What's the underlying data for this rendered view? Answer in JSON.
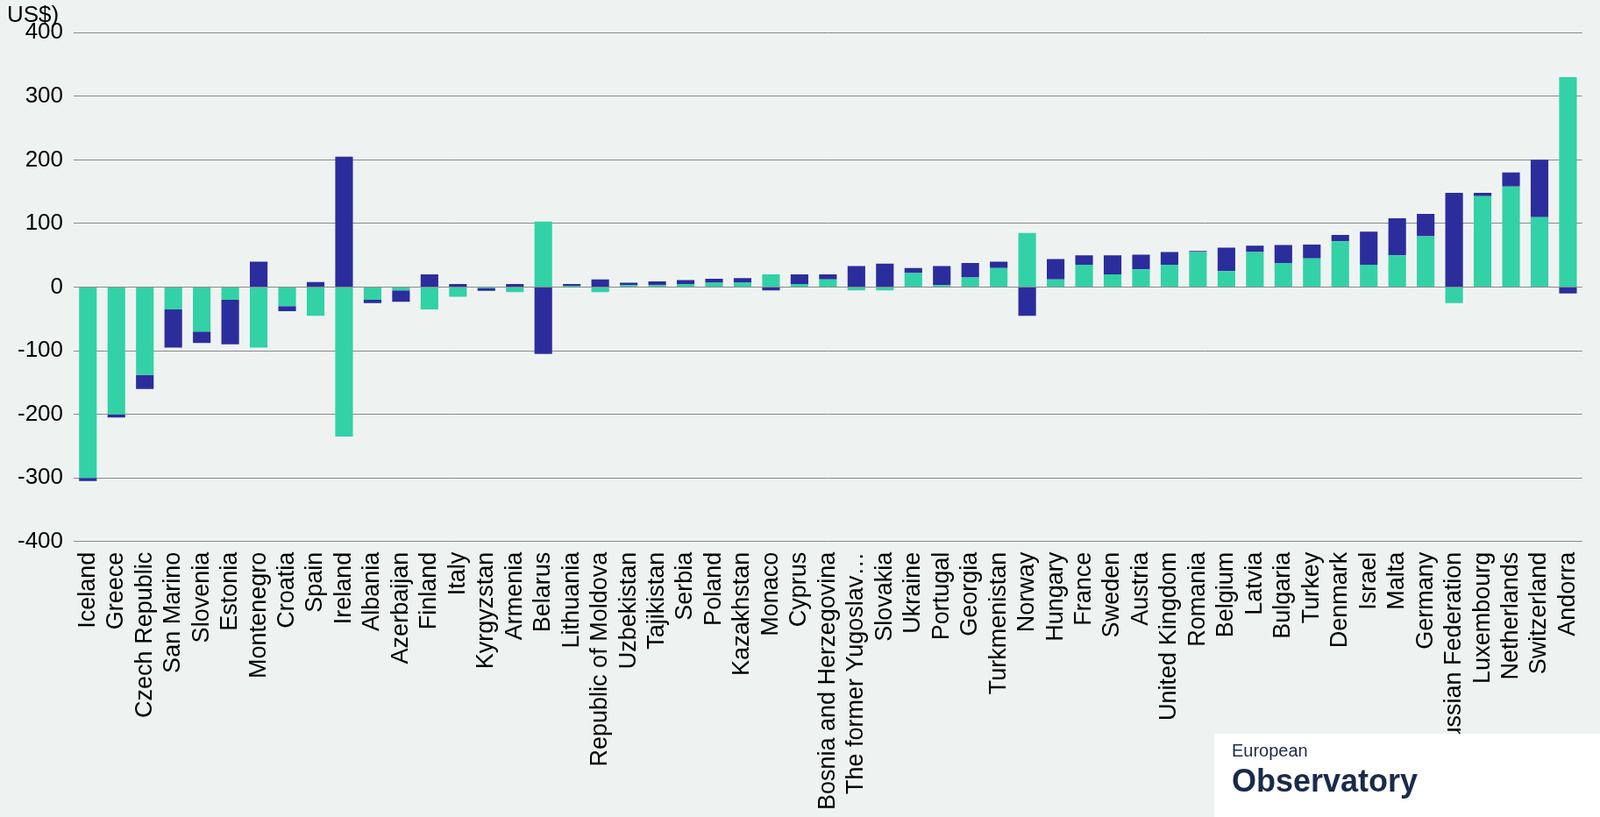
{
  "chart_data": {
    "type": "bar",
    "title": "US$)",
    "annotations": [
      "European",
      "Observatory"
    ],
    "categories": [
      "Iceland",
      "Greece",
      "Czech Republic",
      "San Marino",
      "Slovenia",
      "Estonia",
      "Montenegro",
      "Croatia",
      "Spain",
      "Ireland",
      "Albania",
      "Azerbaijan",
      "Finland",
      "Italy",
      "Kyrgyzstan",
      "Armenia",
      "Belarus",
      "Lithuania",
      "Republic of Moldova",
      "Uzbekistan",
      "Tajikistan",
      "Serbia",
      "Poland",
      "Kazakhstan",
      "Monaco",
      "Cyprus",
      "Bosnia and Herzegovina",
      "The former Yugoslav…",
      "Slovakia",
      "Ukraine",
      "Portugal",
      "Georgia",
      "Turkmenistan",
      "Norway",
      "Hungary",
      "France",
      "Sweden",
      "Austria",
      "United Kingdom",
      "Romania",
      "Belgium",
      "Latvia",
      "Bulgaria",
      "Turkey",
      "Denmark",
      "Israel",
      "Malta",
      "Germany",
      "Russian Federation",
      "Luxembourg",
      "Netherlands",
      "Switzerland",
      "Andorra"
    ],
    "series": [
      {
        "color": "#33d1a6",
        "values": [
          -300,
          -200,
          -138,
          -35,
          -70,
          -20,
          -95,
          -30,
          -45,
          -235,
          -20,
          -5,
          -35,
          -15,
          -2,
          -8,
          103,
          2,
          -8,
          3,
          3,
          5,
          7,
          7,
          20,
          5,
          12,
          -5,
          -5,
          22,
          3,
          15,
          30,
          85,
          12,
          35,
          20,
          28,
          35,
          55,
          25,
          55,
          38,
          45,
          72,
          35,
          50,
          80,
          -25,
          143,
          158,
          110,
          330
        ]
      },
      {
        "color": "#2b2d9c",
        "values": [
          -5,
          -5,
          -22,
          -60,
          -18,
          -70,
          40,
          -8,
          8,
          205,
          -5,
          -18,
          20,
          5,
          -4,
          5,
          -105,
          3,
          12,
          4,
          6,
          6,
          6,
          7,
          -5,
          15,
          8,
          33,
          37,
          8,
          30,
          23,
          10,
          -45,
          32,
          15,
          30,
          23,
          20,
          2,
          37,
          10,
          28,
          22,
          10,
          52,
          58,
          35,
          148,
          5,
          22,
          90,
          -10
        ]
      }
    ],
    "stacked": true,
    "ylim": [
      -400,
      400
    ],
    "yticks": [
      -400,
      -300,
      -200,
      -100,
      0,
      100,
      200,
      300,
      400
    ],
    "grid": true
  }
}
